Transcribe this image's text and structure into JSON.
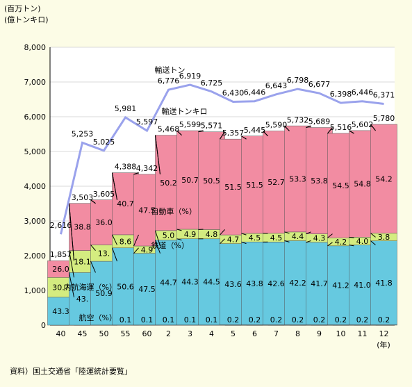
{
  "chart_data": {
    "type": "bar",
    "units": [
      "(百万トン)",
      "(億トンキロ)"
    ],
    "source": "資料）国土交通省「陸運統計要覧」",
    "xunit": "(年)",
    "ylim": [
      0,
      8000
    ],
    "yticks": [
      "0",
      "1,000",
      "2,000",
      "3,000",
      "4,000",
      "5,000",
      "6,000",
      "7,000",
      "8,000"
    ],
    "categories": [
      "40",
      "45",
      "50",
      "55",
      "60",
      "2",
      "3",
      "4",
      "5",
      "6",
      "7",
      "8",
      "9",
      "10",
      "11",
      "12"
    ],
    "category_labels": [
      "40",
      "45",
      "50",
      "55",
      "60",
      "2",
      "3",
      "4",
      "5",
      "6",
      "7",
      "8",
      "9",
      "10",
      "11",
      "12"
    ],
    "stack_order": [
      "航空（%）",
      "内航海運（%）",
      "鉄道（%）",
      "自動車（%）"
    ],
    "series_labels": {
      "aviation": "航空（%）",
      "coastal": "内航海運（%）",
      "rail": "鉄道（%）",
      "auto": "自動車（%）",
      "tonkm": "輸送トンキロ",
      "ton": "輸送トン"
    },
    "colors": {
      "aviation": "#f0f0f0",
      "coastal": "#66c9e0",
      "rail": "#d4ec80",
      "auto": "#f28ca2",
      "line": "#9aa2ec"
    },
    "tonkm_totals": [
      1857,
      3503,
      3605,
      4388,
      4342,
      5468,
      5599,
      5571,
      5357,
      5445,
      5590,
      5732,
      5689,
      5516,
      5602,
      5780
    ],
    "tonkm_labels": [
      "1,857",
      "3,503",
      "3,605",
      "4,388",
      "4,342",
      "5,468",
      "5,599",
      "5,571",
      "5,357",
      "5,445",
      "5,590",
      "5,732",
      "5,689",
      "5,516",
      "5,602",
      "5,780"
    ],
    "series": [
      {
        "key": "aviation",
        "values": [
          0.0,
          0.0,
          0.1,
          0.1,
          0.1,
          0.1,
          0.1,
          0.1,
          0.2,
          0.2,
          0.2,
          0.2,
          0.2,
          0.2,
          0.2,
          0.2
        ],
        "labels": [
          "",
          "",
          "",
          "0.1",
          "0.1",
          "0.1",
          "0.1",
          "0.1",
          "0.2",
          "0.2",
          "0.2",
          "0.2",
          "0.2",
          "0.2",
          "0.2",
          "0.2"
        ]
      },
      {
        "key": "coastal",
        "values": [
          43.3,
          43.2,
          50.9,
          50.6,
          47.5,
          44.7,
          44.3,
          44.5,
          43.6,
          43.8,
          42.6,
          42.2,
          41.7,
          41.2,
          41.0,
          41.8
        ],
        "labels": [
          "43.3",
          "43.",
          "50.9",
          "50.6",
          "47.5",
          "44.7",
          "44.3",
          "44.5",
          "43.6",
          "43.8",
          "42.6",
          "42.2",
          "41.7",
          "41.2",
          "41.0",
          "41.8"
        ]
      },
      {
        "key": "rail",
        "values": [
          30.7,
          18.1,
          13.1,
          8.6,
          4.9,
          5.0,
          4.9,
          4.8,
          4.7,
          4.5,
          4.5,
          4.4,
          4.3,
          4.2,
          4.0,
          3.8
        ],
        "labels": [
          "30.7",
          "18.1",
          "13.",
          "8.6",
          "4.9",
          "5.0",
          "4.9",
          "4.8",
          "4.7",
          "4.5",
          "4.5",
          "4.4",
          "4.3",
          "4.2",
          "4.0",
          "3.8"
        ]
      },
      {
        "key": "auto",
        "values": [
          26.0,
          38.8,
          36.0,
          40.7,
          47.5,
          50.2,
          50.7,
          50.5,
          51.5,
          51.5,
          52.7,
          53.3,
          53.8,
          54.5,
          54.8,
          54.2
        ],
        "labels": [
          "26.0",
          "38.8",
          "36.0",
          "40.7",
          "47.5",
          "50.2",
          "50.7",
          "50.5",
          "51.5",
          "51.5",
          "52.7",
          "53.3",
          "53.8",
          "54.5",
          "54.8",
          "54.2"
        ]
      }
    ],
    "ton_values": [
      2616,
      5253,
      5025,
      5981,
      5597,
      6776,
      6919,
      6725,
      6430,
      6446,
      6643,
      6798,
      6677,
      6398,
      6446,
      6371
    ],
    "ton_labels": [
      "2,616",
      "5,253",
      "5,025",
      "5,981",
      "5,597",
      "6,776",
      "6,919",
      "6,725",
      "6,430",
      "6,446",
      "6,643",
      "6,798",
      "6,677",
      "6,398",
      "6,446",
      "6,371"
    ]
  }
}
